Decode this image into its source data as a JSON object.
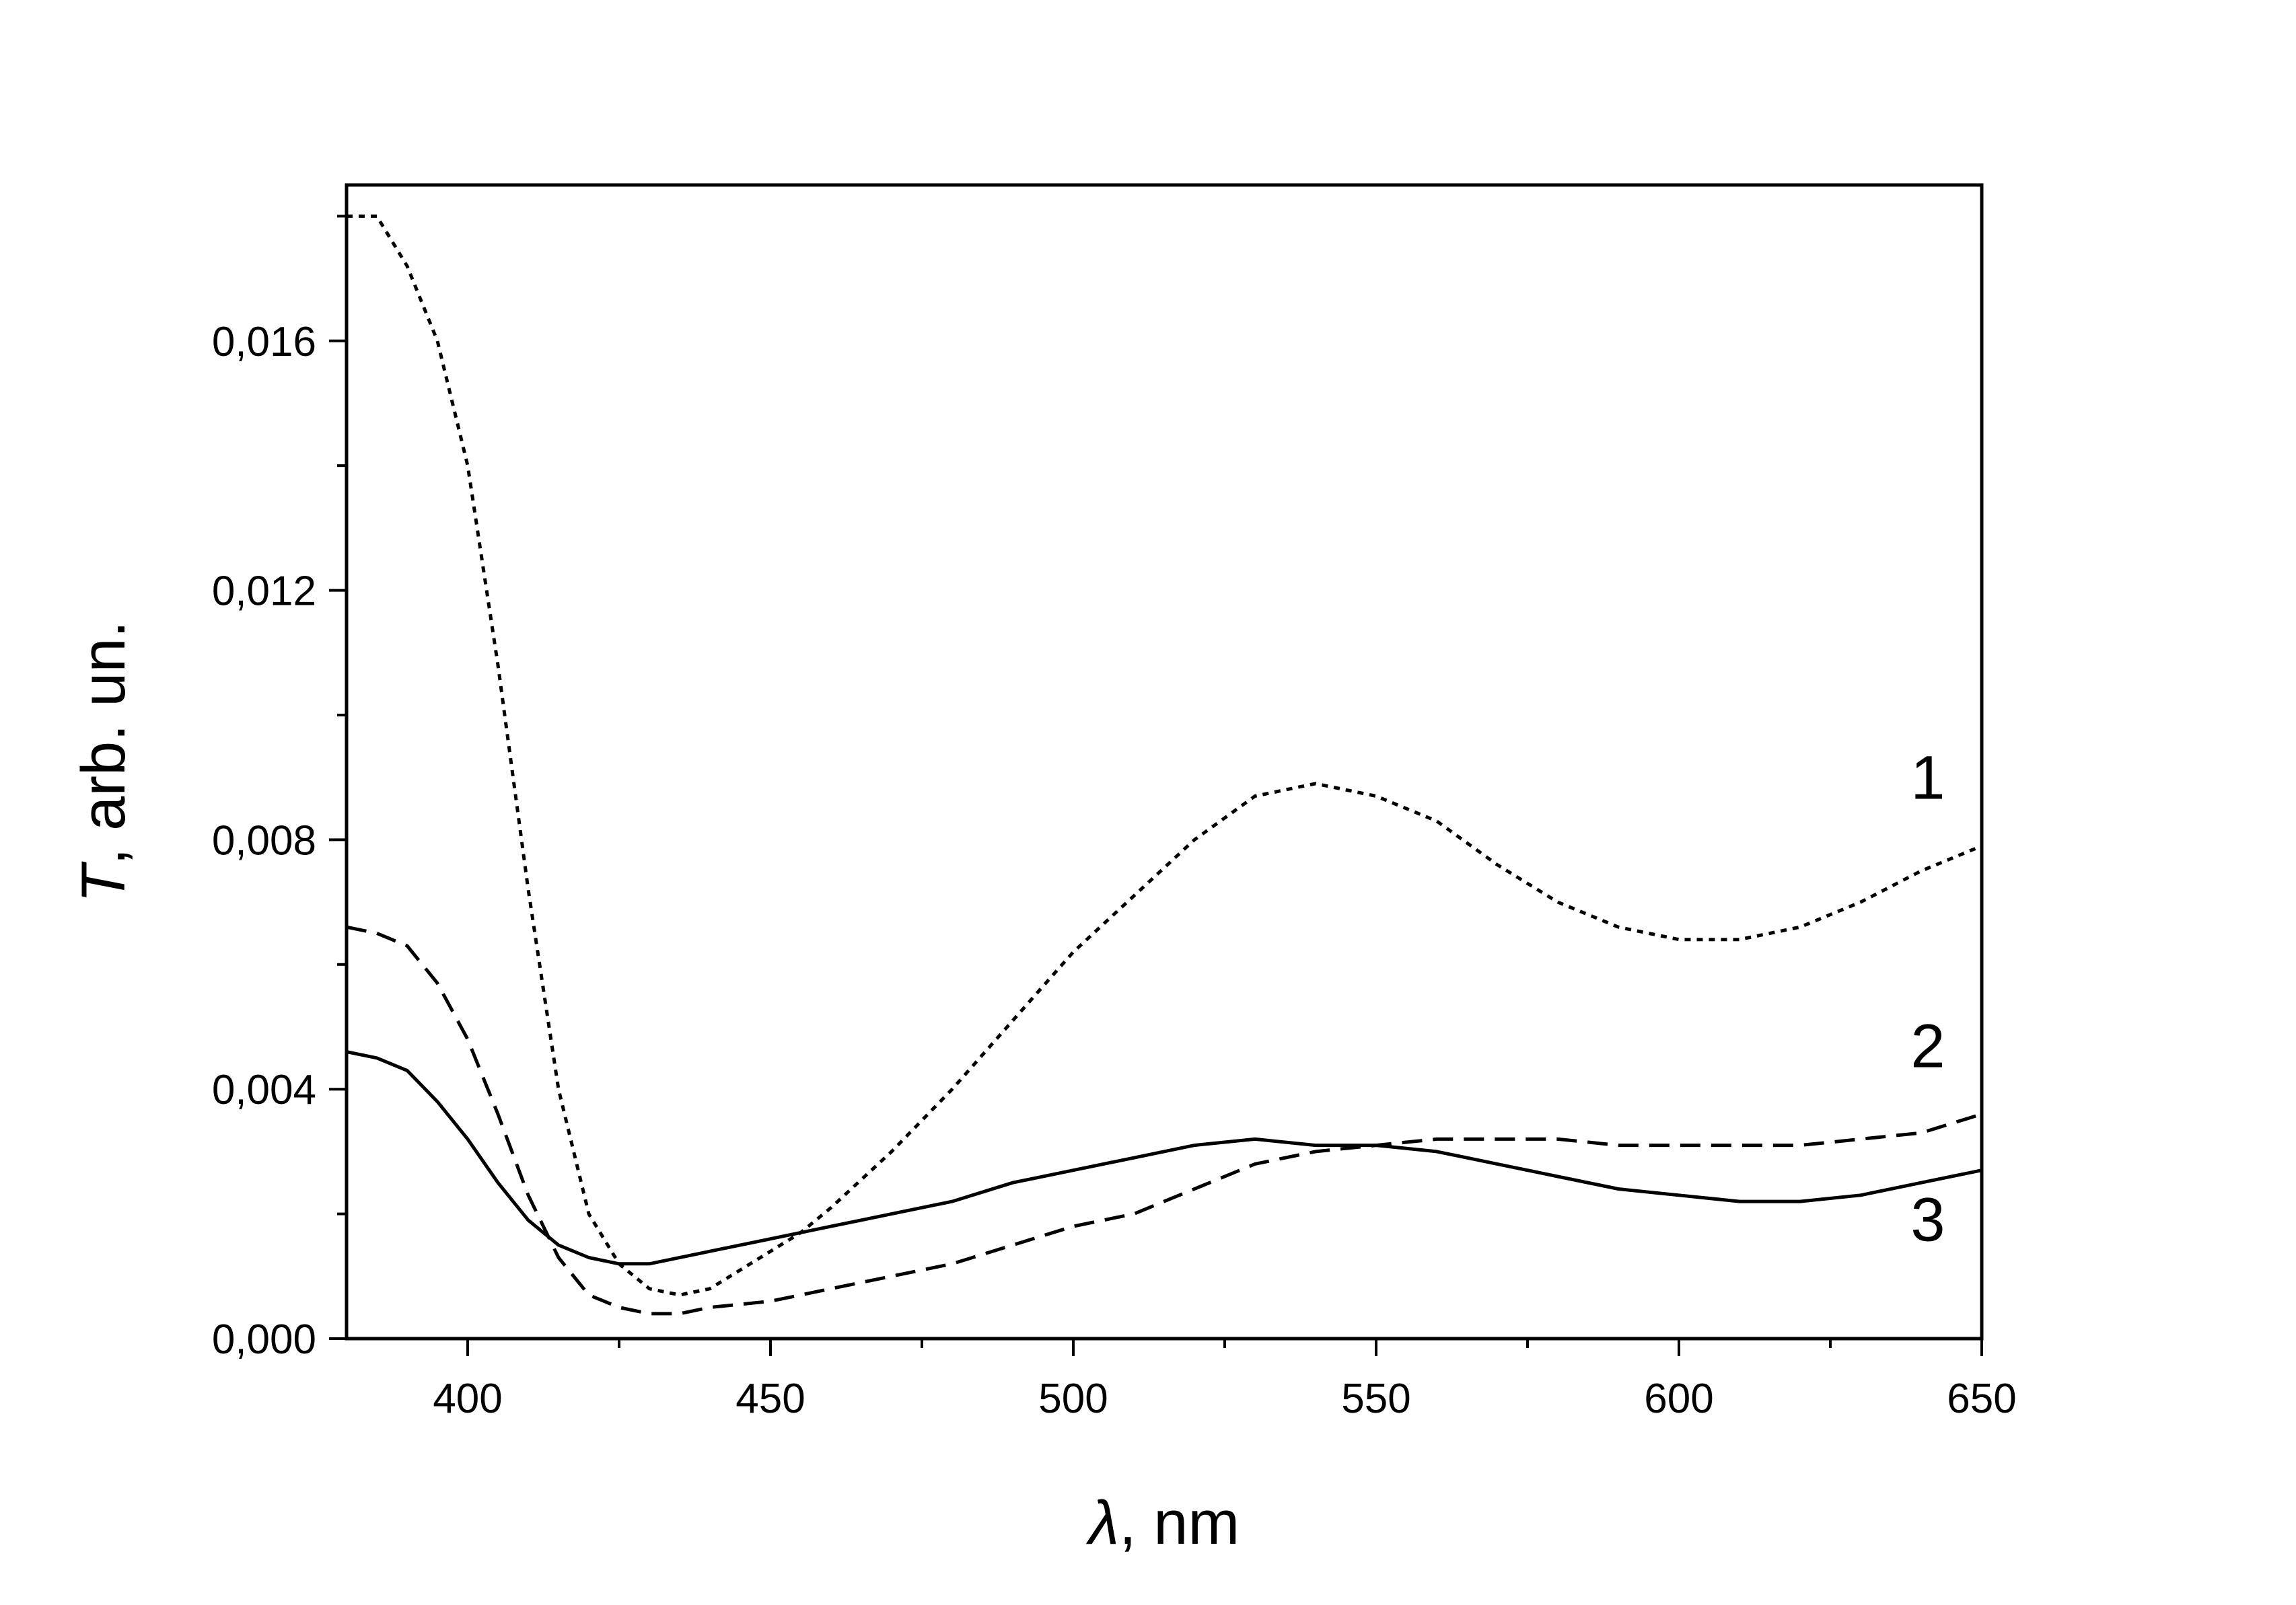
{
  "chart_data": {
    "type": "line",
    "title": "",
    "xlabel": {
      "symbol": "λ",
      "rest": ", nm"
    },
    "ylabel": {
      "symbol": "T",
      "rest": ", arb. un."
    },
    "xlim": [
      380,
      650
    ],
    "ylim": [
      0,
      0.0185
    ],
    "xticks": [
      400,
      450,
      500,
      550,
      600,
      650
    ],
    "xtick_labels": [
      "400",
      "450",
      "500",
      "550",
      "600",
      "650"
    ],
    "yticks": [
      0,
      0.004,
      0.008,
      0.012,
      0.016
    ],
    "ytick_labels": [
      "0,000",
      "0,004",
      "0,008",
      "0,012",
      "0,016"
    ],
    "grid": false,
    "legend": "none",
    "series": [
      {
        "label": "1",
        "style": "dotted",
        "x": [
          380,
          385,
          390,
          395,
          400,
          405,
          410,
          415,
          420,
          425,
          430,
          435,
          440,
          445,
          450,
          455,
          460,
          470,
          480,
          490,
          500,
          510,
          520,
          530,
          540,
          550,
          560,
          570,
          580,
          590,
          600,
          610,
          620,
          630,
          640,
          650
        ],
        "y": [
          0.018,
          0.018,
          0.0172,
          0.016,
          0.014,
          0.0108,
          0.0072,
          0.004,
          0.002,
          0.0012,
          0.0008,
          0.0007,
          0.0008,
          0.0011,
          0.0014,
          0.0017,
          0.0021,
          0.003,
          0.004,
          0.0051,
          0.0062,
          0.0071,
          0.008,
          0.0087,
          0.0089,
          0.0087,
          0.0083,
          0.0076,
          0.007,
          0.0066,
          0.0064,
          0.0064,
          0.0066,
          0.007,
          0.0075,
          0.0079
        ]
      },
      {
        "label": "2",
        "style": "dashed",
        "x": [
          380,
          385,
          390,
          395,
          400,
          405,
          410,
          415,
          420,
          425,
          430,
          435,
          440,
          450,
          460,
          470,
          480,
          490,
          500,
          510,
          520,
          530,
          540,
          550,
          560,
          570,
          580,
          590,
          600,
          610,
          620,
          630,
          640,
          650
        ],
        "y": [
          0.0066,
          0.0065,
          0.0063,
          0.0057,
          0.0048,
          0.0036,
          0.0023,
          0.0013,
          0.0007,
          0.0005,
          0.0004,
          0.0004,
          0.0005,
          0.0006,
          0.0008,
          0.001,
          0.0012,
          0.0015,
          0.0018,
          0.002,
          0.0024,
          0.0028,
          0.003,
          0.0031,
          0.0032,
          0.0032,
          0.0032,
          0.0031,
          0.0031,
          0.0031,
          0.0031,
          0.0032,
          0.0033,
          0.0036
        ]
      },
      {
        "label": "3",
        "style": "solid",
        "x": [
          380,
          385,
          390,
          395,
          400,
          405,
          410,
          415,
          420,
          425,
          430,
          440,
          450,
          460,
          470,
          480,
          490,
          500,
          510,
          520,
          530,
          540,
          550,
          560,
          570,
          580,
          590,
          600,
          610,
          620,
          630,
          640,
          650
        ],
        "y": [
          0.0046,
          0.0045,
          0.0043,
          0.0038,
          0.0032,
          0.0025,
          0.0019,
          0.0015,
          0.0013,
          0.0012,
          0.0012,
          0.0014,
          0.0016,
          0.0018,
          0.002,
          0.0022,
          0.0025,
          0.0027,
          0.0029,
          0.0031,
          0.0032,
          0.0031,
          0.0031,
          0.003,
          0.0028,
          0.0026,
          0.0024,
          0.0023,
          0.0022,
          0.0022,
          0.0023,
          0.0025,
          0.0027
        ]
      }
    ]
  }
}
